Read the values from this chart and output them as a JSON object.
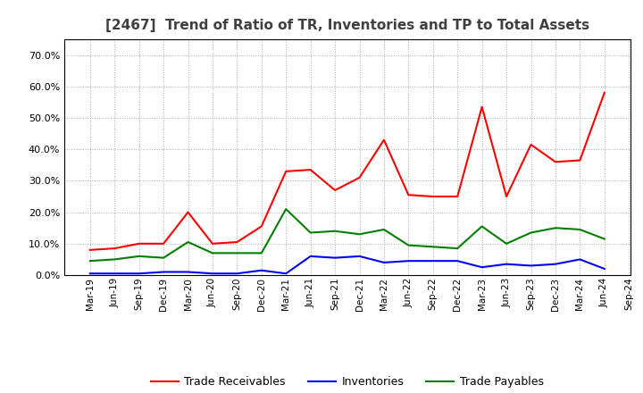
{
  "title": "[2467]  Trend of Ratio of TR, Inventories and TP to Total Assets",
  "x_labels": [
    "Mar-19",
    "Jun-19",
    "Sep-19",
    "Dec-19",
    "Mar-20",
    "Jun-20",
    "Sep-20",
    "Dec-20",
    "Mar-21",
    "Jun-21",
    "Sep-21",
    "Dec-21",
    "Mar-22",
    "Jun-22",
    "Sep-22",
    "Dec-22",
    "Mar-23",
    "Jun-23",
    "Sep-23",
    "Dec-23",
    "Mar-24",
    "Jun-24",
    "Sep-24"
  ],
  "trade_receivables": [
    8.0,
    8.5,
    10.0,
    10.0,
    20.0,
    10.0,
    10.5,
    15.5,
    33.0,
    33.5,
    27.0,
    31.0,
    43.0,
    25.5,
    25.0,
    25.0,
    53.5,
    25.0,
    41.5,
    36.0,
    36.5,
    58.0,
    null
  ],
  "inventories": [
    0.5,
    0.5,
    0.5,
    1.0,
    1.0,
    0.5,
    0.5,
    1.5,
    0.5,
    6.0,
    5.5,
    6.0,
    4.0,
    4.5,
    4.5,
    4.5,
    2.5,
    3.5,
    3.0,
    3.5,
    5.0,
    2.0,
    null
  ],
  "trade_payables": [
    4.5,
    5.0,
    6.0,
    5.5,
    10.5,
    7.0,
    7.0,
    7.0,
    21.0,
    13.5,
    14.0,
    13.0,
    14.5,
    9.5,
    9.0,
    8.5,
    15.5,
    10.0,
    13.5,
    15.0,
    14.5,
    11.5,
    null
  ],
  "tr_color": "#ff0000",
  "inv_color": "#0000ff",
  "tp_color": "#008000",
  "ylim_max": 0.75,
  "yticks": [
    0.0,
    0.1,
    0.2,
    0.3,
    0.4,
    0.5,
    0.6,
    0.7
  ],
  "legend_labels": [
    "Trade Receivables",
    "Inventories",
    "Trade Payables"
  ],
  "bg_color": "#ffffff",
  "title_color": "#404040",
  "grid_color": "#aaaaaa",
  "spine_color": "#000000"
}
